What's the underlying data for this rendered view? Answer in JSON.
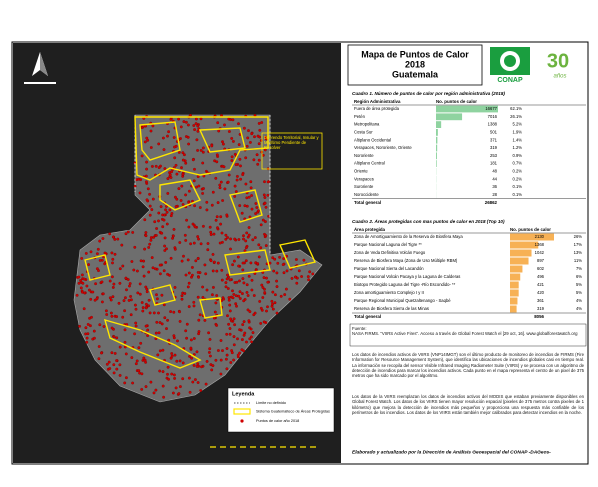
{
  "header": {
    "title": "Mapa de Puntos de Calor",
    "year": "2018",
    "country": "Guatemala",
    "logo": "CONAP",
    "anniversary": "30",
    "anniversary_sub": "años"
  },
  "map": {
    "annotation": "Diferendo Territorial, Insular y Marítimo Pendiente de Resolver",
    "legend": {
      "title": "Leyenda",
      "items": [
        "Límite no definido",
        "Sistema Guatemalteco de Áreas Protegidas",
        "Puntos de calor año 2018"
      ]
    }
  },
  "table1": {
    "title": "Cuadro 1. Número de puntos de calor por región administrativa (2018)",
    "columns": [
      "Región Administrativa",
      "No. puntos de calor"
    ],
    "rows": [
      {
        "name": "Fuera de área protegida",
        "count": 16677,
        "percent": "62.1%"
      },
      {
        "name": "Petén",
        "count": 7016,
        "percent": "26.1%"
      },
      {
        "name": "Metropolitana",
        "count": 1388,
        "percent": "5.2%"
      },
      {
        "name": "Costa Sur",
        "count": 501,
        "percent": "1.9%"
      },
      {
        "name": "Altiplano Occidental",
        "count": 371,
        "percent": "1.4%"
      },
      {
        "name": "Verapaces, Nororiente, Oriente",
        "count": 319,
        "percent": "1.2%"
      },
      {
        "name": "Nororiente",
        "count": 253,
        "percent": "0.9%"
      },
      {
        "name": "Altiplano Central",
        "count": 181,
        "percent": "0.7%"
      },
      {
        "name": "Oriente",
        "count": 48,
        "percent": "0.2%"
      },
      {
        "name": "Verapaces",
        "count": 44,
        "percent": "0.2%"
      },
      {
        "name": "Suroriente",
        "count": 36,
        "percent": "0.1%"
      },
      {
        "name": "Noroccidente",
        "count": 28,
        "percent": "0.1%"
      }
    ],
    "total_label": "Total general",
    "total": 26862
  },
  "table2": {
    "title": "Cuadro 2. Áreas protegidas con mas puntos de calor en 2018 (Top 10)",
    "columns": [
      "Área protegida",
      "No. puntos de calor"
    ],
    "rows": [
      {
        "name": "Zona de Amortiguamiento de la Reserva de Biosfera Maya",
        "count": 2130,
        "percent": "26%"
      },
      {
        "name": "Parque Nacional Laguna del Tigre **",
        "count": 1368,
        "percent": "17%"
      },
      {
        "name": "Zona de Veda Definitiva Volcán Fuego",
        "count": 1042,
        "percent": "13%"
      },
      {
        "name": "Reserva de Biosfera Maya (Zona de Uso Múltiple RBM)",
        "count": 897,
        "percent": "11%"
      },
      {
        "name": "Parque Nacional Sierra del Lacandón",
        "count": 602,
        "percent": "7%"
      },
      {
        "name": "Parque Nacional Volcán Pacaya y la Laguna de Calderas",
        "count": 496,
        "percent": "6%"
      },
      {
        "name": "Biotopo Protegido Laguna del Tigre -Río Escondido- **",
        "count": 421,
        "percent": "5%"
      },
      {
        "name": "Zona amortiguamiento Complejo I y II",
        "count": 420,
        "percent": "5%"
      },
      {
        "name": "Parque Regional Municipal Quetzaltenango - Saqbé",
        "count": 361,
        "percent": "4%"
      },
      {
        "name": "Reserva de Biosfera Sierra de las Minas",
        "count": 319,
        "percent": "4%"
      }
    ],
    "total_label": "Total general",
    "total": 8056
  },
  "source": {
    "label": "Fuente:",
    "text": "NASA FIRMS. \"VIIRS Active Fires\". Acceso a través de Global Forest Watch el [29 oct, 16]. www.globalforestwatch.org"
  },
  "paragraphs": [
    "Los datos de incendios activos de VIIRS (VNP14IMGT) son el último producto de monitoreo de incendios de FIRMS (Fire Information for Resource Management System), que identifica las ubicaciones de incendios globales casi en tiempo real. La información se recopila del sensor Visible Infrared Imaging Radiometer Suite (VIIRS) y se procesa con un algoritmo de detección de incendios para marcar los incendios activos. Cada punto en el mapa representa el centro de un pixel de 375 metros que ha sido marcado por el algoritmo.",
    "Los datos de la VIIRS reemplazan los datos de incendios activos del MODIS que estaban previamente disponibles en Global Forest Watch. Los datos de los VIIRS tienen mayor resolución espacial (pixeles de 375 metros contra pixeles de 1 kilómetro) que mejora la detección de incendios más pequeños y proporciona una respuesta más confiable de los perímetros de los incendios. Los datos de los VIIRS están también mejor calibrados para detectar incendios en la noche."
  ],
  "footer": "Elaborado y actualizado por la Dirección de Análisis Geoespacial del CONAP -DAGeos-"
}
